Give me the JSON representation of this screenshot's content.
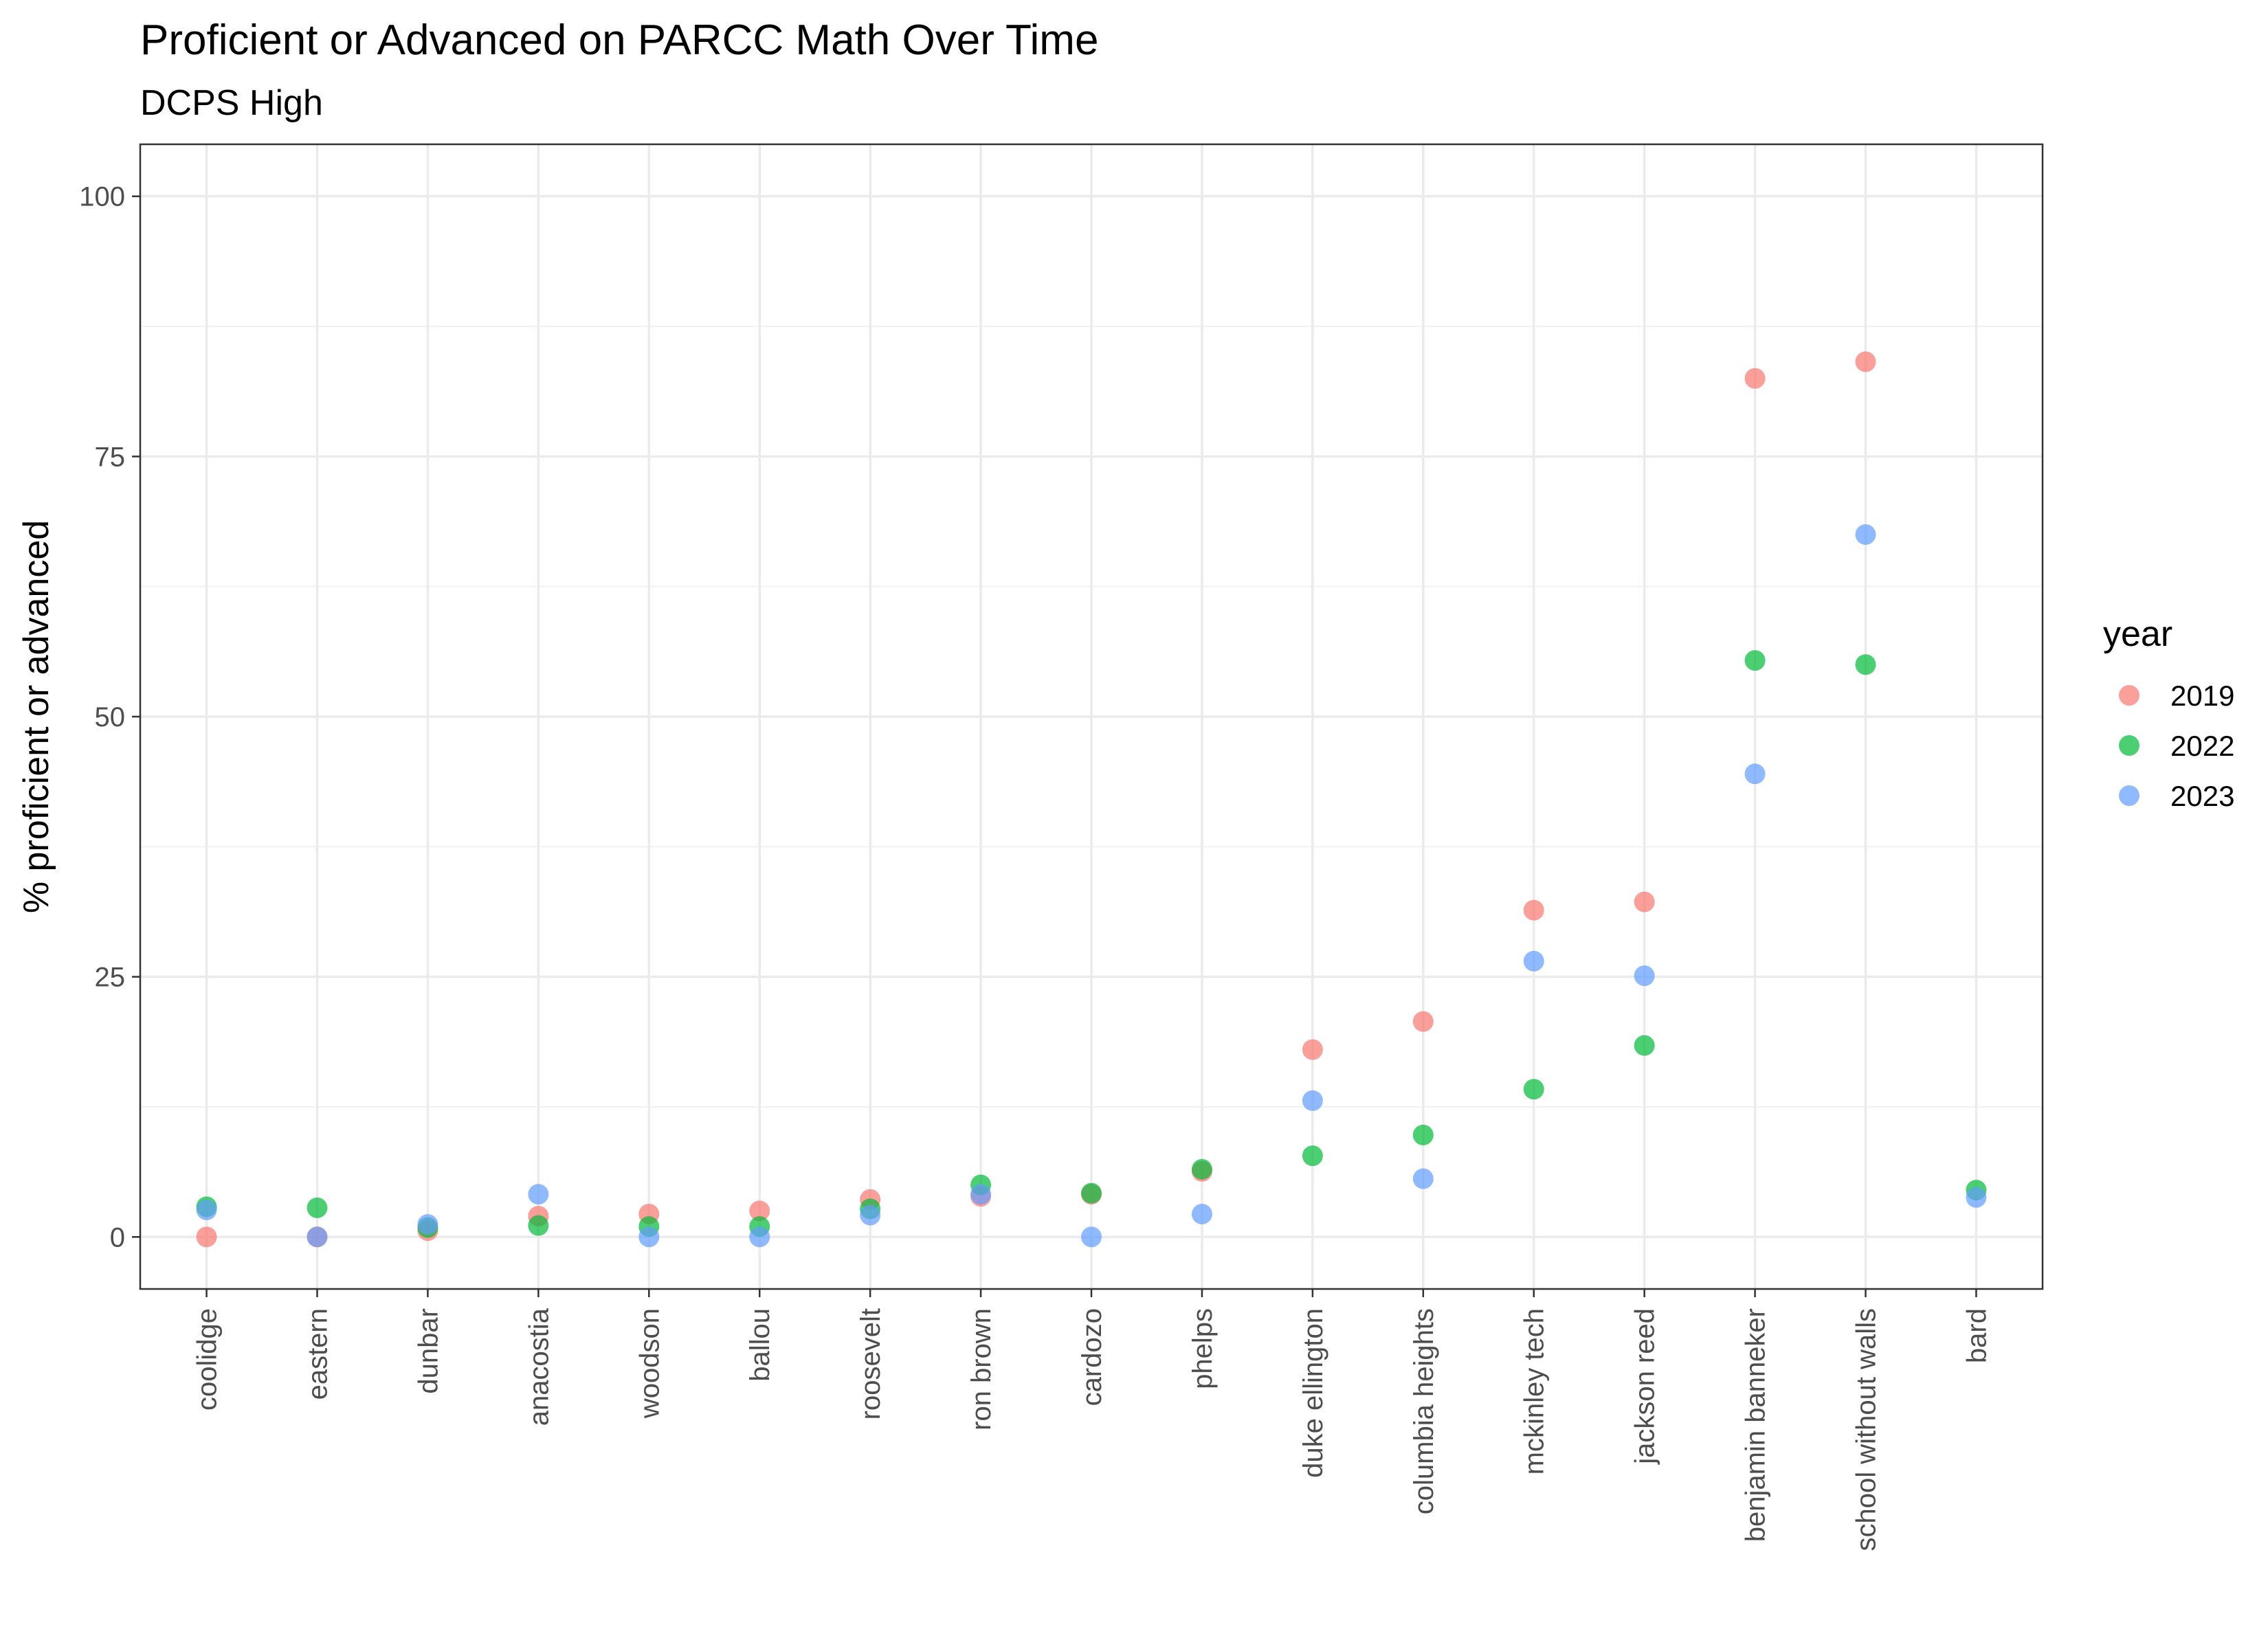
{
  "chart_data": {
    "type": "scatter",
    "title": "Proficient or Advanced on PARCC Math Over Time",
    "subtitle": "DCPS High",
    "xlabel": "",
    "ylabel": "% proficient or advanced",
    "ylim": [
      -5,
      105
    ],
    "yticks": [
      0,
      25,
      50,
      75,
      100
    ],
    "grid": true,
    "legend_position": "right",
    "legend_title": "year",
    "categories": [
      "coolidge",
      "eastern",
      "dunbar",
      "anacostia",
      "woodson",
      "ballou",
      "roosevelt",
      "ron brown",
      "cardozo",
      "phelps",
      "duke ellington",
      "columbia heights",
      "mckinley tech",
      "jackson reed",
      "benjamin banneker",
      "school without walls",
      "bard"
    ],
    "series": [
      {
        "name": "2019",
        "color": "#F8766D",
        "values": [
          0,
          0,
          0.6,
          2,
          2.2,
          2.5,
          3.6,
          3.9,
          4.1,
          6.3,
          18,
          20.7,
          31.4,
          32.2,
          82.5,
          84.1,
          null
        ]
      },
      {
        "name": "2022",
        "color": "#00BA38",
        "values": [
          2.9,
          2.8,
          0.9,
          1.1,
          1,
          1,
          2.7,
          5,
          4.2,
          6.5,
          7.8,
          9.8,
          14.2,
          18.4,
          55.4,
          55,
          4.5
        ]
      },
      {
        "name": "2023",
        "color": "#619CFF",
        "values": [
          2.6,
          0,
          1.2,
          4.1,
          0,
          0,
          2.1,
          4.1,
          0,
          2.2,
          13.1,
          5.6,
          26.5,
          25.1,
          44.5,
          67.5,
          3.8
        ]
      }
    ]
  }
}
